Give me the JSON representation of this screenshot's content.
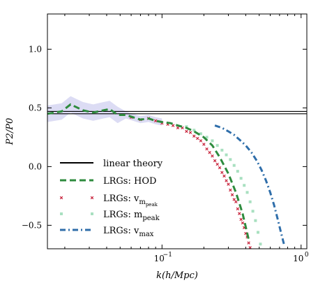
{
  "chart_data": {
    "type": "scatter",
    "xscale": "log",
    "xlim": [
      0.015,
      1.1
    ],
    "ylim": [
      -0.7,
      1.3
    ],
    "xlabel": "k(h/Mpc)",
    "ylabel": "P2/P0",
    "x_ticks": [
      {
        "value": 0.1,
        "label": "10",
        "exp": "−1"
      },
      {
        "value": 1.0,
        "label": "10",
        "exp": "0"
      }
    ],
    "y_ticks": [
      {
        "value": -0.5,
        "label": "−0.5"
      },
      {
        "value": 0.0,
        "label": "0.0"
      },
      {
        "value": 0.5,
        "label": "0.5"
      },
      {
        "value": 1.0,
        "label": "1.0"
      }
    ],
    "grid": false,
    "legend_position": "lower-left",
    "colors": {
      "linear": "#000000",
      "hod": "#2e8b3e",
      "vmpeak": "#c8243c",
      "mpeak": "#a8e0c0",
      "vmax": "#2f6eaa",
      "band": "#dcdcf4"
    },
    "series": [
      {
        "key": "linear",
        "name": "linear theory",
        "style": "double-line",
        "values": [
          0.45,
          0.47
        ]
      },
      {
        "key": "hod",
        "name": "LRGs: HOD",
        "style": "dashed",
        "x": [
          0.015,
          0.019,
          0.022,
          0.027,
          0.032,
          0.038,
          0.042,
          0.048,
          0.055,
          0.062,
          0.07,
          0.08,
          0.09,
          0.1,
          0.115,
          0.13,
          0.15,
          0.17,
          0.2,
          0.23,
          0.26,
          0.3,
          0.34,
          0.38,
          0.42
        ],
        "y": [
          0.45,
          0.47,
          0.53,
          0.48,
          0.46,
          0.48,
          0.49,
          0.44,
          0.44,
          0.42,
          0.4,
          0.41,
          0.39,
          0.38,
          0.37,
          0.35,
          0.33,
          0.3,
          0.25,
          0.18,
          0.08,
          -0.06,
          -0.22,
          -0.4,
          -0.62
        ]
      },
      {
        "key": "vmpeak",
        "name": "LRGs: v",
        "name_sub": "m",
        "name_subsub": "peak",
        "style": "marker-x",
        "x": [
          0.06,
          0.07,
          0.08,
          0.09,
          0.1,
          0.11,
          0.12,
          0.13,
          0.14,
          0.15,
          0.16,
          0.17,
          0.18,
          0.19,
          0.2,
          0.21,
          0.22,
          0.23,
          0.24,
          0.25,
          0.26,
          0.27,
          0.28,
          0.29,
          0.3,
          0.31,
          0.32,
          0.33,
          0.34,
          0.35,
          0.36,
          0.37,
          0.38,
          0.39,
          0.4,
          0.41,
          0.42,
          0.43
        ],
        "y": [
          0.42,
          0.4,
          0.41,
          0.39,
          0.37,
          0.36,
          0.35,
          0.33,
          0.33,
          0.3,
          0.29,
          0.26,
          0.24,
          0.22,
          0.19,
          0.15,
          0.12,
          0.09,
          0.05,
          0.02,
          -0.01,
          -0.05,
          -0.08,
          -0.12,
          -0.15,
          -0.2,
          -0.24,
          -0.28,
          -0.3,
          -0.36,
          -0.4,
          -0.45,
          -0.48,
          -0.52,
          -0.57,
          -0.6,
          -0.65,
          -0.69
        ]
      },
      {
        "key": "mpeak",
        "name": "LRGs: m",
        "name_sub": "peak",
        "style": "marker-square",
        "x": [
          0.15,
          0.17,
          0.19,
          0.21,
          0.23,
          0.25,
          0.27,
          0.29,
          0.31,
          0.33,
          0.35,
          0.37,
          0.39,
          0.41,
          0.43,
          0.45,
          0.47,
          0.49,
          0.51
        ],
        "y": [
          0.34,
          0.31,
          0.28,
          0.25,
          0.22,
          0.18,
          0.14,
          0.1,
          0.06,
          0.01,
          -0.04,
          -0.1,
          -0.16,
          -0.22,
          -0.3,
          -0.38,
          -0.46,
          -0.56,
          -0.66
        ]
      },
      {
        "key": "vmax",
        "name": "LRGs: v",
        "name_sub": "max",
        "style": "dashdot",
        "x": [
          0.24,
          0.27,
          0.3,
          0.33,
          0.36,
          0.4,
          0.44,
          0.48,
          0.52,
          0.56,
          0.6,
          0.64,
          0.68,
          0.72,
          0.76
        ],
        "y": [
          0.35,
          0.33,
          0.3,
          0.27,
          0.23,
          0.18,
          0.12,
          0.05,
          -0.03,
          -0.12,
          -0.22,
          -0.33,
          -0.45,
          -0.57,
          -0.68
        ]
      }
    ]
  }
}
